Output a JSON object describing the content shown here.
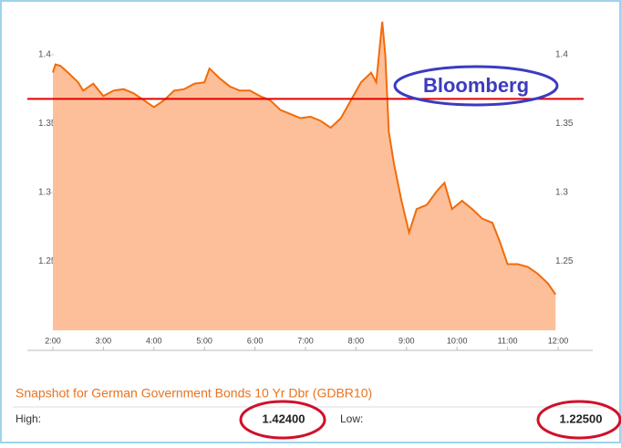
{
  "chart_data": {
    "type": "area",
    "x": [
      2.0,
      2.05,
      2.15,
      2.3,
      2.5,
      2.6,
      2.8,
      3.0,
      3.2,
      3.4,
      3.6,
      3.8,
      4.0,
      4.2,
      4.4,
      4.6,
      4.8,
      5.0,
      5.1,
      5.3,
      5.5,
      5.7,
      5.9,
      6.1,
      6.3,
      6.5,
      6.7,
      6.9,
      7.1,
      7.3,
      7.5,
      7.7,
      7.9,
      8.1,
      8.3,
      8.4,
      8.52,
      8.58,
      8.65,
      8.75,
      8.9,
      9.05,
      9.2,
      9.4,
      9.6,
      9.75,
      9.9,
      10.1,
      10.3,
      10.5,
      10.7,
      10.85,
      11.0,
      11.2,
      11.4,
      11.6,
      11.8,
      11.95
    ],
    "series": [
      {
        "color": "#f26b0a",
        "fill": "#fdbf99",
        "values": [
          1.387,
          1.393,
          1.392,
          1.387,
          1.38,
          1.374,
          1.379,
          1.37,
          1.374,
          1.375,
          1.372,
          1.367,
          1.362,
          1.367,
          1.374,
          1.375,
          1.379,
          1.38,
          1.39,
          1.383,
          1.377,
          1.374,
          1.374,
          1.37,
          1.367,
          1.36,
          1.357,
          1.354,
          1.355,
          1.352,
          1.347,
          1.354,
          1.367,
          1.38,
          1.387,
          1.38,
          1.424,
          1.4,
          1.344,
          1.321,
          1.294,
          1.271,
          1.288,
          1.291,
          1.301,
          1.307,
          1.288,
          1.294,
          1.288,
          1.281,
          1.278,
          1.264,
          1.248,
          1.248,
          1.246,
          1.241,
          1.234,
          1.226
        ]
      }
    ],
    "xlim": [
      2,
      12
    ],
    "xticks": [
      {
        "value": 2,
        "label": "2:00"
      },
      {
        "value": 3,
        "label": "3:00"
      },
      {
        "value": 4,
        "label": "4:00"
      },
      {
        "value": 5,
        "label": "5:00"
      },
      {
        "value": 6,
        "label": "6:00"
      },
      {
        "value": 7,
        "label": "7:00"
      },
      {
        "value": 8,
        "label": "8:00"
      },
      {
        "value": 9,
        "label": "9:00"
      },
      {
        "value": 10,
        "label": "10:00"
      },
      {
        "value": 11,
        "label": "11:00"
      },
      {
        "value": 12,
        "label": "12:00"
      }
    ],
    "ylim": [
      1.2,
      1.43
    ],
    "yticks": [
      1.25,
      1.3,
      1.35,
      1.4
    ],
    "hline": {
      "value": 1.368,
      "color": "#e00000"
    },
    "annotation": "Bloomberg",
    "footer": {
      "title": "Snapshot for German Government Bonds 10 Yr Dbr (GDBR10)",
      "high_label": "High:",
      "high": "1.42400",
      "low_label": "Low:",
      "low": "1.22500"
    }
  }
}
